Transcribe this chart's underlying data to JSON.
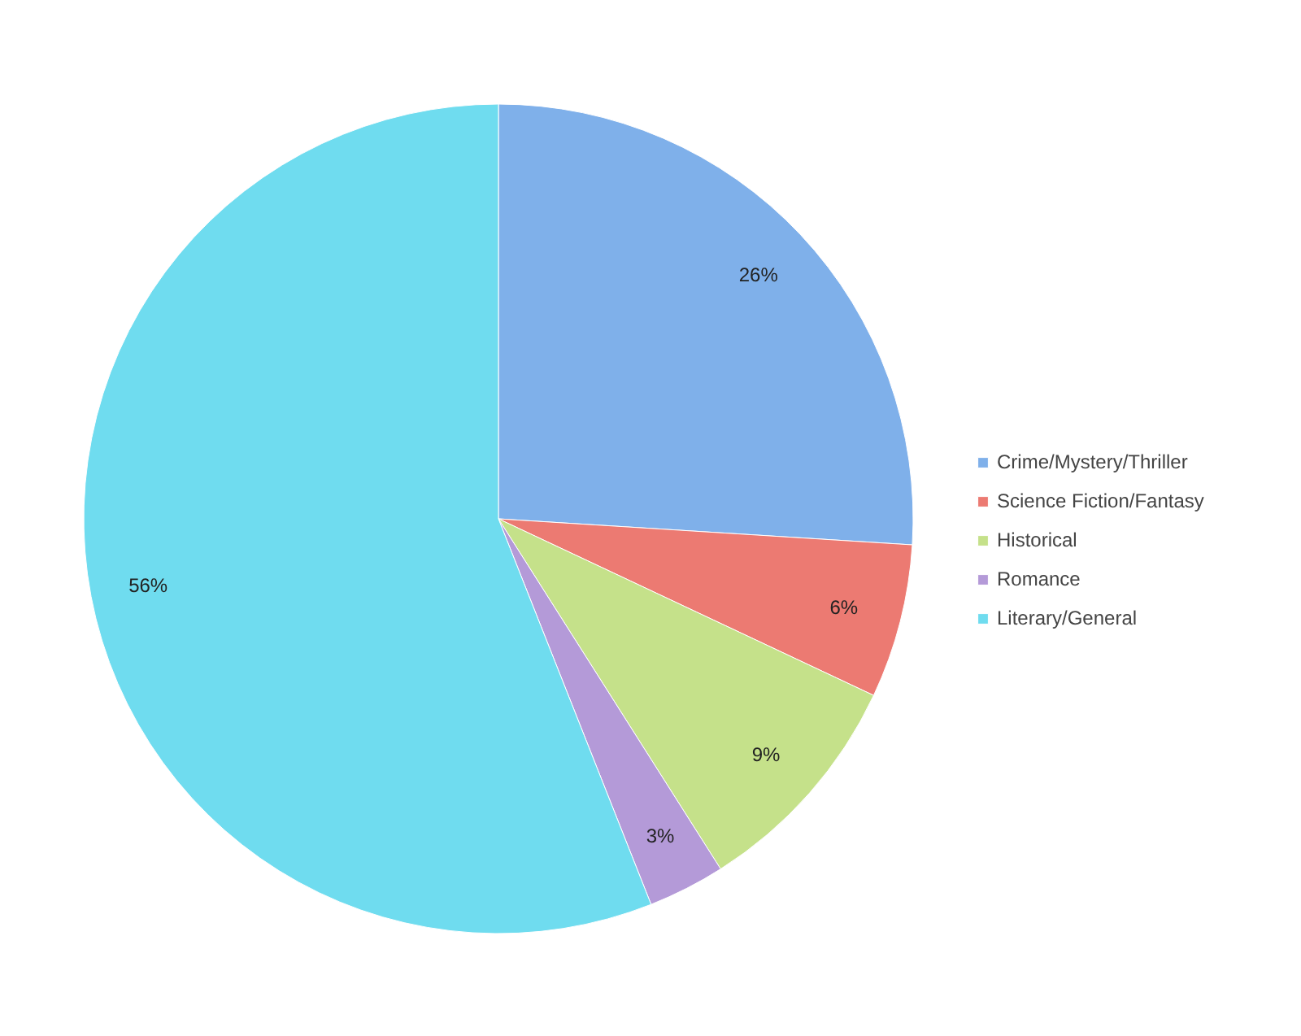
{
  "chart_data": {
    "type": "pie",
    "categories": [
      "Crime/Mystery/Thriller",
      "Science Fiction/Fantasy",
      "Historical",
      "Romance",
      "Literary/General"
    ],
    "values": [
      26,
      6,
      9,
      3,
      56
    ],
    "colors": [
      "#7fb0ea",
      "#ec7a72",
      "#c5e18a",
      "#b49ad8",
      "#6fdcef"
    ],
    "value_labels": [
      "26%",
      "6%",
      "9%",
      "3%",
      "56%"
    ],
    "legend": "right"
  }
}
